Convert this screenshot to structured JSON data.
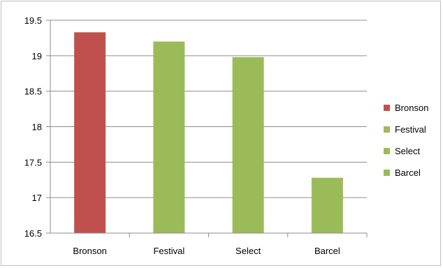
{
  "chart_data": {
    "type": "bar",
    "categories": [
      "Bronson",
      "Festival",
      "Select",
      "Barcel"
    ],
    "values": [
      19.33,
      19.2,
      18.98,
      17.28
    ],
    "colors": [
      "#c0504d",
      "#9bbb59",
      "#9bbb59",
      "#9bbb59"
    ],
    "ylim": [
      16.5,
      19.5
    ],
    "yticks": [
      "16.5",
      "17",
      "17.5",
      "18",
      "18.5",
      "19",
      "19.5"
    ],
    "grid": true,
    "legend": {
      "position": "right",
      "entries": [
        {
          "label": "Bronson",
          "color": "#c0504d"
        },
        {
          "label": "Festival",
          "color": "#9bbb59"
        },
        {
          "label": "Select",
          "color": "#9bbb59"
        },
        {
          "label": "Barcel",
          "color": "#9bbb59"
        }
      ]
    },
    "title": "",
    "xlabel": "",
    "ylabel": ""
  }
}
